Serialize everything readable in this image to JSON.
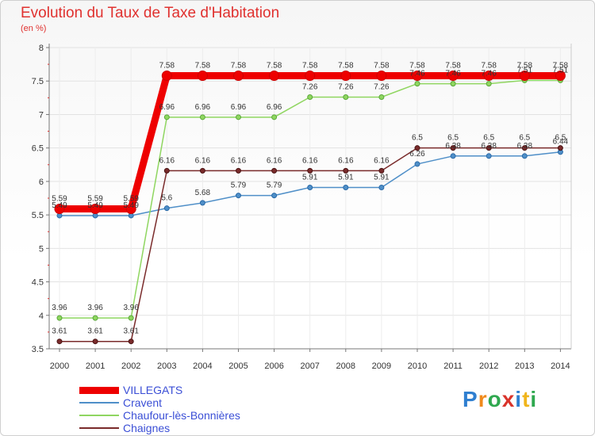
{
  "title": "Evolution du Taux de Taxe d'Habitation",
  "subtitle": "(en %)",
  "logo": "Proxiti",
  "chart_data": {
    "type": "line",
    "title": "Evolution du Taux de Taxe d'Habitation",
    "ylabel": "(en %)",
    "ylim": [
      3.5,
      8
    ],
    "yticks": [
      3.5,
      4,
      4.5,
      5,
      5.5,
      6,
      6.5,
      7,
      7.5,
      8
    ],
    "x": [
      "2000",
      "2001",
      "2002",
      "2003",
      "2004",
      "2005",
      "2006",
      "2007",
      "2008",
      "2009",
      "2010",
      "2011",
      "2012",
      "2013",
      "2014"
    ],
    "series": [
      {
        "name": "VILLEGATS",
        "color": "#ee0000",
        "bold": true,
        "values": [
          5.59,
          5.59,
          5.59,
          7.58,
          7.58,
          7.58,
          7.58,
          7.58,
          7.58,
          7.58,
          7.58,
          7.58,
          7.58,
          7.58,
          7.58
        ]
      },
      {
        "name": "Cravent",
        "color": "#4f8fc8",
        "bold": false,
        "values": [
          5.49,
          5.49,
          5.49,
          5.6,
          5.68,
          5.79,
          5.79,
          5.91,
          5.91,
          5.91,
          6.26,
          6.38,
          6.38,
          6.38,
          6.44
        ]
      },
      {
        "name": "Chaufour-lès-Bonnières",
        "color": "#8fd660",
        "bold": false,
        "values": [
          3.96,
          3.96,
          3.96,
          6.96,
          6.96,
          6.96,
          6.96,
          7.26,
          7.26,
          7.26,
          7.46,
          7.46,
          7.46,
          7.51,
          7.51
        ]
      },
      {
        "name": "Chaignes",
        "color": "#7a2b2b",
        "bold": false,
        "values": [
          3.61,
          3.61,
          3.61,
          6.16,
          6.16,
          6.16,
          6.16,
          6.16,
          6.16,
          6.16,
          6.5,
          6.5,
          6.5,
          6.5,
          6.5
        ]
      }
    ],
    "legend_position": "bottom-left"
  }
}
